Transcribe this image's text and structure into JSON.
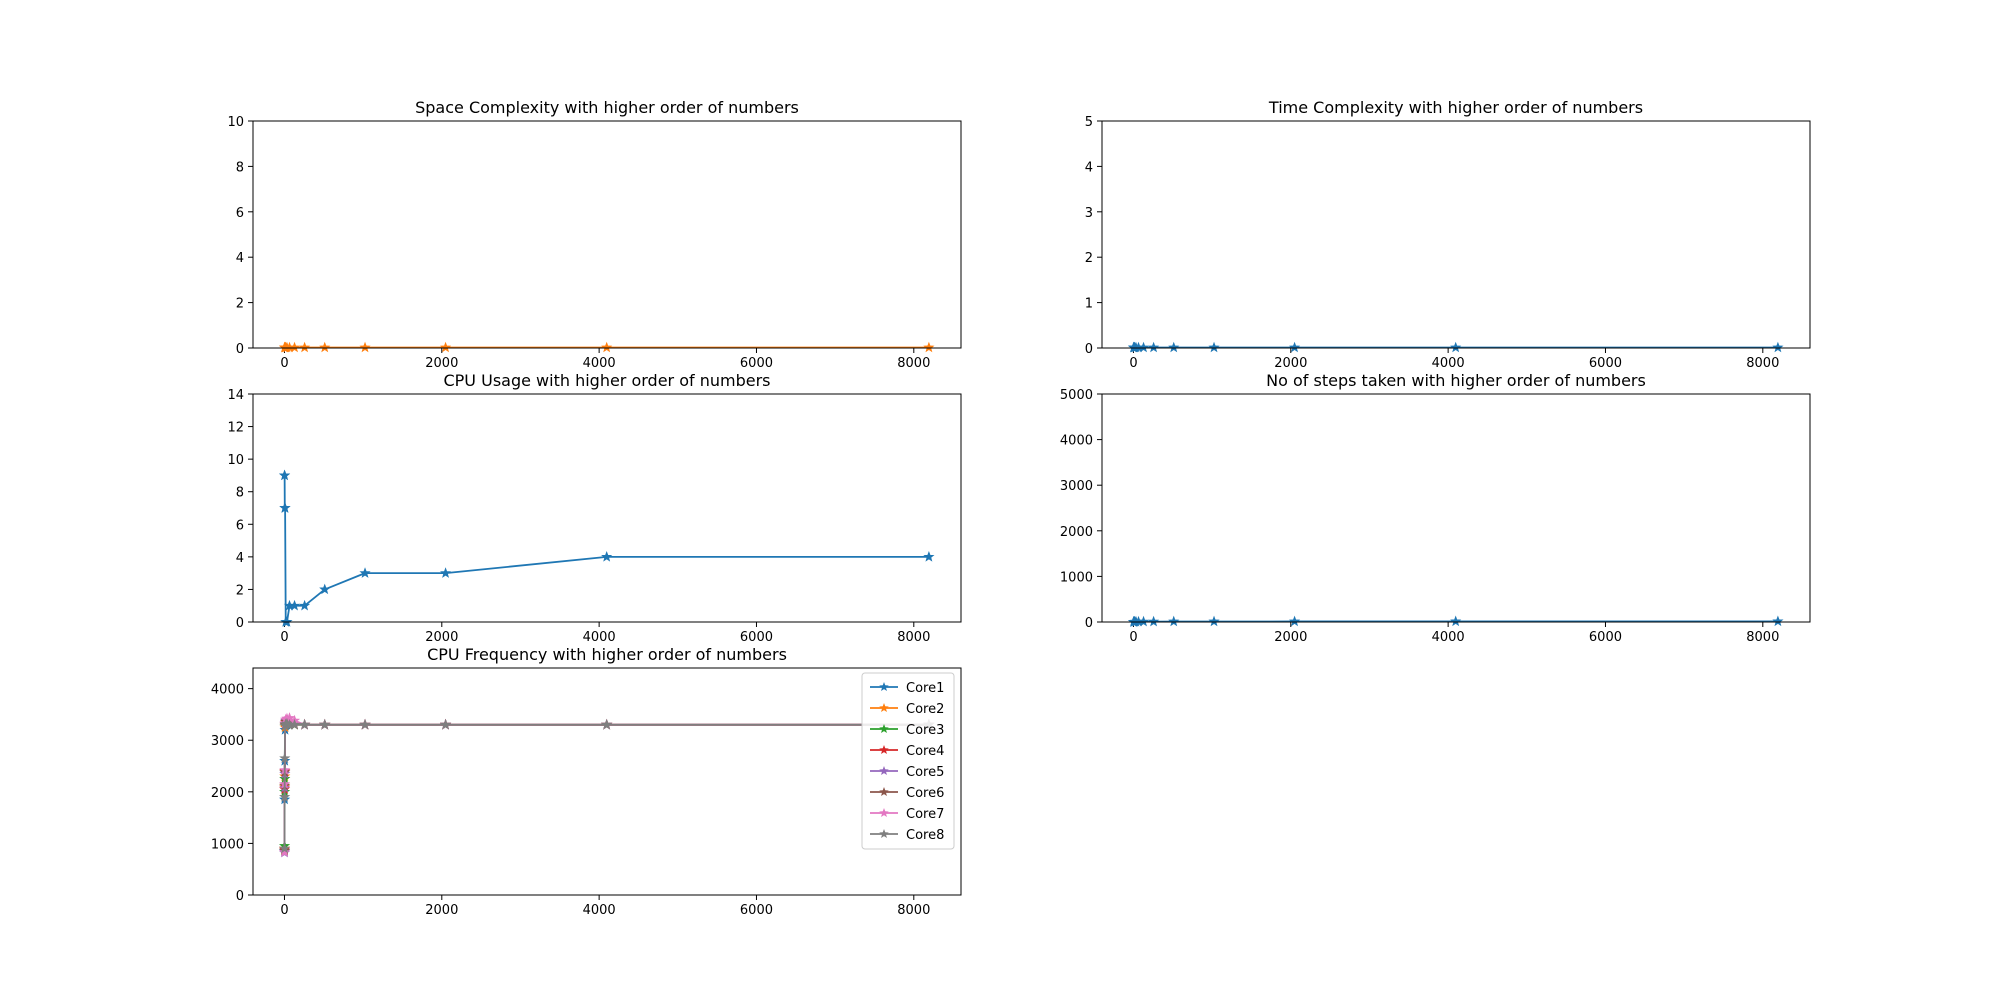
{
  "chart_data": [
    {
      "type": "line",
      "title": "Space Complexity with higher order of numbers",
      "xticks": [
        0,
        2000,
        4000,
        6000,
        8000
      ],
      "yticks": [
        0,
        2,
        4,
        6,
        8,
        10
      ],
      "xlim": [
        -400,
        8600
      ],
      "ylim": [
        0,
        10
      ],
      "legend": "none",
      "series": [
        {
          "color": "#ff7f0e",
          "marker": "star",
          "x": [
            1,
            2,
            4,
            8,
            16,
            32,
            64,
            128,
            256,
            512,
            1024,
            2048,
            4096,
            8192
          ],
          "y": [
            0.02,
            0.02,
            0.02,
            0.02,
            0.02,
            0.02,
            0.02,
            0.02,
            0.02,
            0.02,
            0.02,
            0.02,
            0.02,
            0.02
          ]
        }
      ]
    },
    {
      "type": "line",
      "title": "Time Complexity with higher order of numbers",
      "xticks": [
        0,
        2000,
        4000,
        6000,
        8000
      ],
      "yticks": [
        0,
        1,
        2,
        3,
        4,
        5
      ],
      "xlim": [
        -400,
        8600
      ],
      "ylim": [
        0,
        5
      ],
      "legend": "none",
      "series": [
        {
          "color": "#1f77b4",
          "marker": "star",
          "x": [
            1,
            2,
            4,
            8,
            16,
            32,
            64,
            128,
            256,
            512,
            1024,
            2048,
            4096,
            8192
          ],
          "y": [
            0.01,
            0.01,
            0.01,
            0.01,
            0.01,
            0.01,
            0.01,
            0.01,
            0.01,
            0.01,
            0.01,
            0.01,
            0.01,
            0.01
          ]
        }
      ]
    },
    {
      "type": "line",
      "title": "CPU Usage with higher order of numbers",
      "xticks": [
        0,
        2000,
        4000,
        6000,
        8000
      ],
      "yticks": [
        0,
        2,
        4,
        6,
        8,
        10,
        12,
        14
      ],
      "xlim": [
        -400,
        8600
      ],
      "ylim": [
        0,
        14
      ],
      "legend": "none",
      "series": [
        {
          "color": "#1f77b4",
          "marker": "star",
          "x": [
            1,
            2,
            4,
            8,
            16,
            32,
            64,
            128,
            256,
            512,
            1024,
            2048,
            4096,
            8192
          ],
          "y": [
            9,
            9,
            7,
            7,
            0,
            0,
            1,
            1,
            1,
            2,
            3,
            3,
            4,
            4
          ]
        }
      ]
    },
    {
      "type": "line",
      "title": "No of steps taken with higher order of numbers",
      "xticks": [
        0,
        2000,
        4000,
        6000,
        8000
      ],
      "yticks": [
        0,
        1000,
        2000,
        3000,
        4000,
        5000
      ],
      "xlim": [
        -400,
        8600
      ],
      "ylim": [
        0,
        5000
      ],
      "legend": "none",
      "series": [
        {
          "color": "#1f77b4",
          "marker": "star",
          "x": [
            1,
            2,
            4,
            8,
            16,
            32,
            64,
            128,
            256,
            512,
            1024,
            2048,
            4096,
            8192
          ],
          "y": [
            1,
            2,
            3,
            4,
            5,
            6,
            7,
            8,
            9,
            10,
            11,
            12,
            13,
            14
          ]
        }
      ]
    },
    {
      "type": "line",
      "title": "CPU Frequency with higher order of numbers",
      "xticks": [
        0,
        2000,
        4000,
        6000,
        8000
      ],
      "yticks": [
        0,
        1000,
        2000,
        3000,
        4000
      ],
      "xlim": [
        -400,
        8600
      ],
      "ylim": [
        0,
        4400
      ],
      "legend": "top-right",
      "series": [
        {
          "name": "Core1",
          "color": "#1f77b4",
          "marker": "star",
          "x": [
            1,
            2,
            4,
            8,
            16,
            32,
            64,
            128,
            256,
            512,
            1024,
            2048,
            4096,
            8192
          ],
          "y": [
            850,
            1850,
            2600,
            3200,
            3300,
            3310,
            3300,
            3300,
            3300,
            3300,
            3300,
            3300,
            3300,
            3300
          ]
        },
        {
          "name": "Core2",
          "color": "#ff7f0e",
          "marker": "star",
          "x": [
            1,
            2,
            4,
            8,
            16,
            32,
            64,
            128,
            256,
            512,
            1024,
            2048,
            4096,
            8192
          ],
          "y": [
            900,
            2100,
            2300,
            3250,
            3310,
            3320,
            3310,
            3300,
            3300,
            3300,
            3300,
            3300,
            3300,
            3300
          ]
        },
        {
          "name": "Core3",
          "color": "#2ca02c",
          "marker": "star",
          "x": [
            1,
            2,
            4,
            8,
            16,
            32,
            64,
            128,
            256,
            512,
            1024,
            2048,
            4096,
            8192
          ],
          "y": [
            950,
            2000,
            2250,
            3280,
            3320,
            3330,
            3320,
            3300,
            3300,
            3300,
            3300,
            3300,
            3300,
            3300
          ]
        },
        {
          "name": "Core4",
          "color": "#d62728",
          "marker": "star",
          "x": [
            1,
            2,
            4,
            8,
            16,
            32,
            64,
            128,
            256,
            512,
            1024,
            2048,
            4096,
            8192
          ],
          "y": [
            880,
            2050,
            2400,
            3300,
            3350,
            3360,
            3340,
            3310,
            3300,
            3300,
            3300,
            3300,
            3300,
            3300
          ]
        },
        {
          "name": "Core5",
          "color": "#9467bd",
          "marker": "star",
          "x": [
            1,
            2,
            4,
            8,
            16,
            32,
            64,
            128,
            256,
            512,
            1024,
            2048,
            4096,
            8192
          ],
          "y": [
            820,
            2080,
            2350,
            3320,
            3380,
            3400,
            3360,
            3310,
            3300,
            3300,
            3300,
            3300,
            3300,
            3300
          ]
        },
        {
          "name": "Core6",
          "color": "#8c564b",
          "marker": "star",
          "x": [
            1,
            2,
            4,
            8,
            16,
            32,
            64,
            128,
            256,
            512,
            1024,
            2048,
            4096,
            8192
          ],
          "y": [
            860,
            2120,
            2380,
            3300,
            3360,
            3370,
            3350,
            3310,
            3300,
            3300,
            3300,
            3300,
            3300,
            3300
          ]
        },
        {
          "name": "Core7",
          "color": "#e377c2",
          "marker": "star",
          "x": [
            1,
            2,
            4,
            8,
            16,
            32,
            64,
            128,
            256,
            512,
            1024,
            2048,
            4096,
            8192
          ],
          "y": [
            830,
            2150,
            2420,
            3330,
            3400,
            3420,
            3430,
            3380,
            3300,
            3300,
            3300,
            3300,
            3300,
            3300
          ]
        },
        {
          "name": "Core8",
          "color": "#7f7f7f",
          "marker": "star",
          "x": [
            1,
            2,
            4,
            8,
            16,
            32,
            64,
            128,
            256,
            512,
            1024,
            2048,
            4096,
            8192
          ],
          "y": [
            900,
            1900,
            2650,
            3280,
            3310,
            3320,
            3300,
            3300,
            3300,
            3300,
            3300,
            3300,
            3300,
            3300
          ]
        }
      ]
    }
  ]
}
